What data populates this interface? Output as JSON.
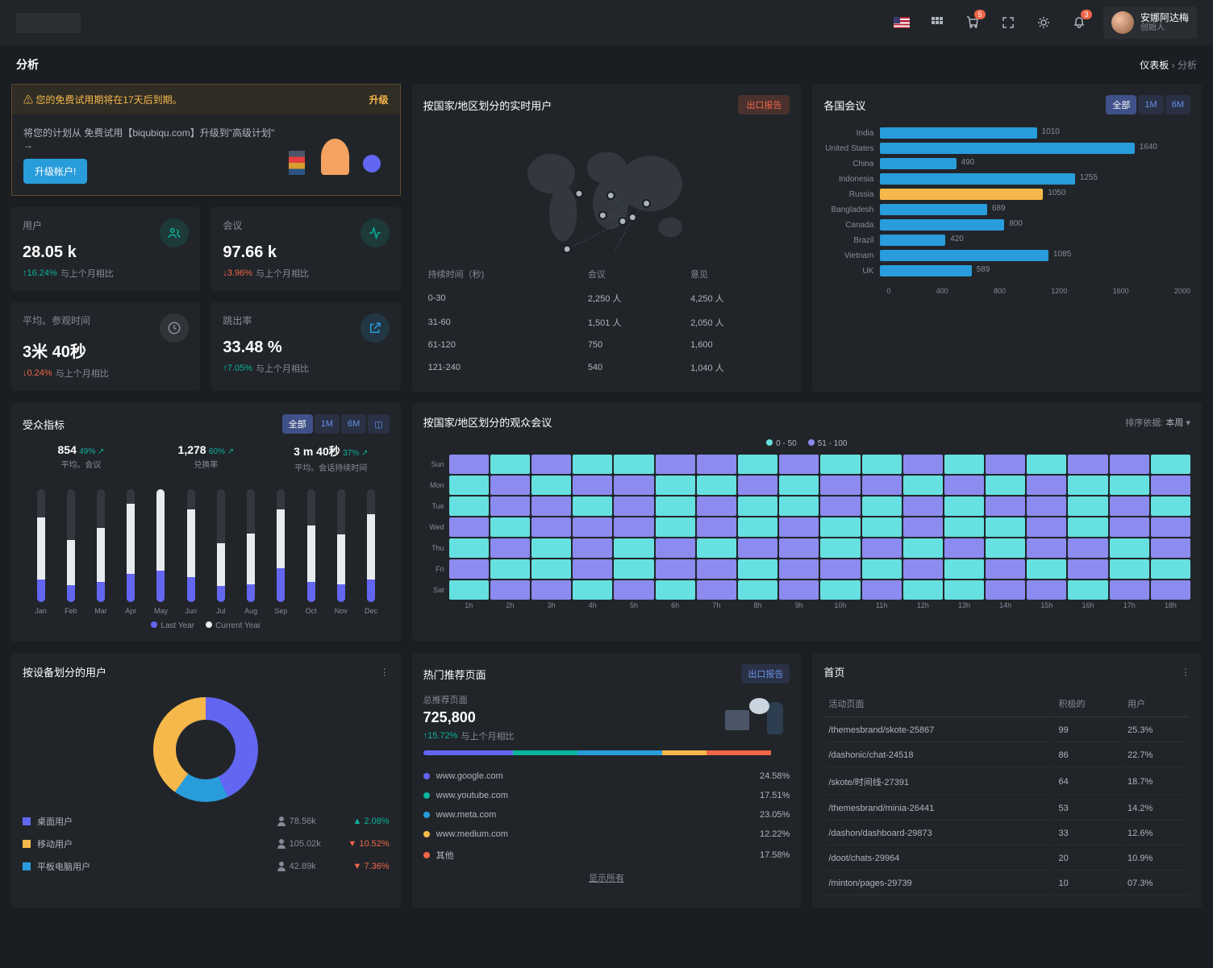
{
  "header": {
    "user_name": "安娜阿达梅",
    "user_role": "创始人",
    "badge_cart": "5",
    "badge_bell": "3"
  },
  "page": {
    "title": "分析",
    "crumb_root": "仪表板",
    "crumb_current": "分析"
  },
  "banner": {
    "warning": "⚠ 您的免费试用期将在17天后到期。",
    "upgrade": "升级",
    "text": "将您的计划从 免费试用【biqubiqu.com】升级到\"高级计划\" →",
    "btn": "升级帐户!"
  },
  "stats": [
    {
      "label": "用户",
      "value": "28.05 k",
      "delta": "16.24%",
      "dir": "up",
      "note": "与上个月相比",
      "icon": "users",
      "ic": "ic-teal"
    },
    {
      "label": "会议",
      "value": "97.66 k",
      "delta": "3.96%",
      "dir": "down",
      "note": "与上个月相比",
      "icon": "activity",
      "ic": "ic-teal"
    },
    {
      "label": "平均。参观时间",
      "value": "3米 40秒",
      "delta": "0.24%",
      "dir": "down",
      "note": "与上个月相比",
      "icon": "clock",
      "ic": "ic-gray"
    },
    {
      "label": "跳出率",
      "value": "33.48 %",
      "delta": "7.05%",
      "dir": "up",
      "note": "与上个月相比",
      "icon": "external",
      "ic": "ic-blue"
    }
  ],
  "realtime": {
    "title": "按国家/地区划分的实时用户",
    "export": "出口报告",
    "th": [
      "持续时间（秒)",
      "会议",
      "意见"
    ],
    "rows": [
      [
        "0-30",
        "2,250 人",
        "4,250 人"
      ],
      [
        "31-60",
        "1,501 人",
        "2,050 人"
      ],
      [
        "61-120",
        "750",
        "1,600"
      ],
      [
        "121-240",
        "540",
        "1,040 人"
      ]
    ],
    "map_dots": [
      [
        36,
        35
      ],
      [
        48,
        46
      ],
      [
        52,
        36
      ],
      [
        63,
        47
      ],
      [
        58,
        49
      ],
      [
        70,
        40
      ],
      [
        30,
        63
      ],
      [
        50,
        72
      ]
    ]
  },
  "countries": {
    "title": "各国会议",
    "filters": [
      "全部",
      "1M",
      "6M"
    ],
    "active": 0,
    "max": 2000,
    "bars": [
      {
        "label": "India",
        "val": 1010,
        "color": "#299cdb"
      },
      {
        "label": "United States",
        "val": 1640,
        "color": "#299cdb"
      },
      {
        "label": "China",
        "val": 490,
        "color": "#299cdb"
      },
      {
        "label": "Indonesia",
        "val": 1255,
        "color": "#299cdb"
      },
      {
        "label": "Russia",
        "val": 1050,
        "color": "#f7b84b"
      },
      {
        "label": "Bangladesh",
        "val": 689,
        "color": "#299cdb"
      },
      {
        "label": "Canada",
        "val": 800,
        "color": "#299cdb"
      },
      {
        "label": "Brazil",
        "val": 420,
        "color": "#299cdb"
      },
      {
        "label": "Vietnam",
        "val": 1085,
        "color": "#299cdb"
      },
      {
        "label": "UK",
        "val": 589,
        "color": "#299cdb"
      }
    ],
    "axis": [
      "0",
      "400",
      "800",
      "1200",
      "1600",
      "2000"
    ]
  },
  "audience": {
    "title": "受众指标",
    "filters": [
      "全部",
      "1M",
      "6M"
    ],
    "chart_icon": "bar",
    "metrics": [
      {
        "val": "854",
        "pct": "49%",
        "dir": "up",
        "lbl": "平均。会议"
      },
      {
        "val": "1,278",
        "pct": "60%",
        "dir": "up",
        "lbl": "兑换率"
      },
      {
        "val": "3 m 40秒",
        "pct": "37%",
        "dir": "up",
        "lbl": "平均。会话持续时间"
      }
    ],
    "months": [
      "Jan",
      "Feb",
      "Mar",
      "Apr",
      "May",
      "Jun",
      "Jul",
      "Aug",
      "Sep",
      "Oct",
      "Nov",
      "Dec"
    ],
    "last_year": [
      55,
      40,
      48,
      62,
      78,
      60,
      38,
      45,
      52,
      50,
      44,
      58
    ],
    "current_year": [
      20,
      15,
      18,
      25,
      30,
      22,
      14,
      16,
      30,
      18,
      16,
      20
    ],
    "legend": [
      "Last Year",
      "Current Year"
    ],
    "colors": {
      "last": "#e9ecef",
      "current": "#6366f1"
    }
  },
  "heatmap": {
    "title": "按国家/地区划分的观众会议",
    "sort_label": "排序依据:",
    "sort_value": "本周",
    "legend": [
      {
        "label": "0 - 50",
        "color": "#66e0e0"
      },
      {
        "label": "51 - 100",
        "color": "#8b8bf0"
      }
    ],
    "days": [
      "Sun",
      "Mon",
      "Tue",
      "Wed",
      "Thu",
      "Fri",
      "Sat"
    ],
    "hours": [
      "1h",
      "2h",
      "3h",
      "4h",
      "5h",
      "6h",
      "7h",
      "8h",
      "9h",
      "10h",
      "11h",
      "12h",
      "13h",
      "14h",
      "15h",
      "16h",
      "17h",
      "18h"
    ],
    "data": [
      [
        1,
        0,
        1,
        0,
        0,
        1,
        1,
        0,
        1,
        0,
        0,
        1,
        0,
        1,
        0,
        1,
        1,
        0
      ],
      [
        0,
        1,
        0,
        1,
        1,
        0,
        0,
        1,
        0,
        1,
        1,
        0,
        1,
        0,
        1,
        0,
        0,
        1
      ],
      [
        0,
        1,
        1,
        0,
        1,
        0,
        1,
        0,
        0,
        1,
        0,
        1,
        0,
        1,
        1,
        0,
        1,
        0
      ],
      [
        1,
        0,
        1,
        1,
        1,
        0,
        1,
        0,
        1,
        0,
        0,
        1,
        0,
        0,
        1,
        0,
        1,
        1
      ],
      [
        0,
        1,
        0,
        1,
        0,
        1,
        0,
        1,
        1,
        0,
        1,
        0,
        1,
        0,
        1,
        1,
        0,
        1
      ],
      [
        1,
        0,
        0,
        1,
        0,
        1,
        1,
        0,
        1,
        1,
        0,
        1,
        0,
        1,
        0,
        1,
        0,
        0
      ],
      [
        0,
        1,
        1,
        0,
        1,
        0,
        1,
        0,
        1,
        0,
        1,
        0,
        0,
        1,
        1,
        0,
        1,
        1
      ]
    ],
    "palette": [
      "#66e0e0",
      "#8b8bf0"
    ]
  },
  "devices": {
    "title": "按设备划分的用户",
    "items": [
      {
        "name": "桌面用户",
        "color": "#6366f1",
        "count": "78.56k",
        "pct": "2.08%",
        "dir": "up"
      },
      {
        "name": "移动用户",
        "color": "#f7b84b",
        "count": "105.02k",
        "pct": "10.52%",
        "dir": "down"
      },
      {
        "name": "平板电脑用户",
        "color": "#299cdb",
        "count": "42.89k",
        "pct": "7.36%",
        "dir": "down"
      }
    ]
  },
  "referrals": {
    "title": "热门推荐页面",
    "export": "出口报告",
    "total_label": "总推荐页面",
    "total": "725,800",
    "delta": "15.72%",
    "note": "与上个月相比",
    "segments": [
      {
        "color": "#6366f1",
        "w": 24.58
      },
      {
        "color": "#0ab39c",
        "w": 17.51
      },
      {
        "color": "#299cdb",
        "w": 23.05
      },
      {
        "color": "#f7b84b",
        "w": 12.22
      },
      {
        "color": "#f06548",
        "w": 17.58
      }
    ],
    "rows": [
      {
        "dot": "#6366f1",
        "name": "www.google.com",
        "pct": "24.58%"
      },
      {
        "dot": "#0ab39c",
        "name": "www.youtube.com",
        "pct": "17.51%"
      },
      {
        "dot": "#299cdb",
        "name": "www.meta.com",
        "pct": "23.05%"
      },
      {
        "dot": "#f7b84b",
        "name": "www.medium.com",
        "pct": "12.22%"
      },
      {
        "dot": "#f06548",
        "name": "其他",
        "pct": "17.58%"
      }
    ],
    "show_all": "显示所有"
  },
  "pages": {
    "title": "首页",
    "th": [
      "活动页面",
      "积极的",
      "用户"
    ],
    "rows": [
      [
        "/themesbrand/skote-25867",
        "99",
        "25.3%"
      ],
      [
        "/dashonic/chat-24518",
        "86",
        "22.7%"
      ],
      [
        "/skote/时间线-27391",
        "64",
        "18.7%"
      ],
      [
        "/themesbrand/minia-26441",
        "53",
        "14.2%"
      ],
      [
        "/dashon/dashboard-29873",
        "33",
        "12.6%"
      ],
      [
        "/doot/chats-29964",
        "20",
        "10.9%"
      ],
      [
        "/minton/pages-29739",
        "10",
        "07.3%"
      ]
    ]
  }
}
